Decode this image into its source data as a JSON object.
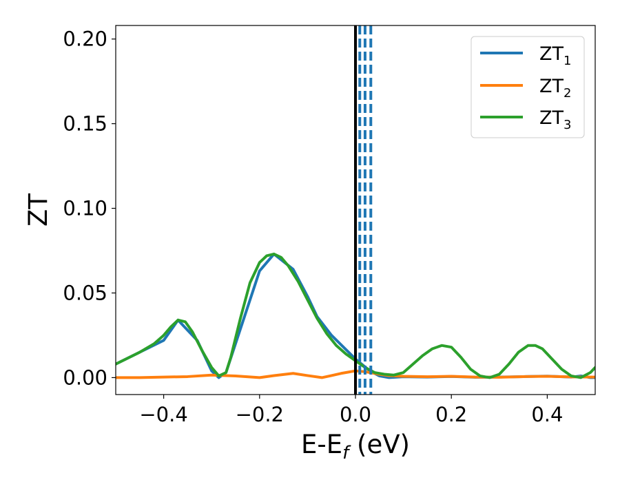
{
  "chart_data": {
    "type": "line",
    "xlabel": {
      "main": "E-E",
      "sub": "f",
      "suffix": " (eV)"
    },
    "ylabel": "ZT",
    "xlim": [
      -0.5,
      0.5
    ],
    "ylim": [
      -0.01,
      0.208
    ],
    "xticks": [
      -0.4,
      -0.2,
      0.0,
      0.2,
      0.4
    ],
    "xtick_labels": [
      "−0.4",
      "−0.2",
      "0.0",
      "0.2",
      "0.4"
    ],
    "yticks": [
      0.0,
      0.05,
      0.1,
      0.15,
      0.2
    ],
    "ytick_labels": [
      "0.00",
      "0.05",
      "0.10",
      "0.15",
      "0.20"
    ],
    "grid": false,
    "legend_position": "top-right",
    "series": [
      {
        "name": "ZT",
        "sub": "1",
        "color": "#1f77b4",
        "x": [
          -0.5,
          -0.4,
          -0.37,
          -0.33,
          -0.3,
          -0.285,
          -0.27,
          -0.2,
          -0.17,
          -0.13,
          -0.1,
          -0.08,
          -0.05,
          0.0,
          0.03,
          0.05,
          0.07,
          0.1,
          0.15,
          0.2,
          0.25,
          0.3,
          0.35,
          0.4,
          0.45,
          0.47,
          0.49,
          0.5
        ],
        "y": [
          0.008,
          0.022,
          0.034,
          0.022,
          0.004,
          0.0,
          0.003,
          0.063,
          0.073,
          0.064,
          0.048,
          0.036,
          0.025,
          0.011,
          0.004,
          0.001,
          0.0,
          0.0005,
          0.0003,
          0.0007,
          0.0002,
          0.0003,
          0.0006,
          0.0009,
          0.0003,
          0.001,
          0.0,
          0.0
        ]
      },
      {
        "name": "ZT",
        "sub": "2",
        "color": "#ff7f0e",
        "x": [
          -0.5,
          -0.45,
          -0.4,
          -0.35,
          -0.3,
          -0.25,
          -0.2,
          -0.17,
          -0.13,
          -0.1,
          -0.07,
          -0.05,
          -0.03,
          0.0,
          0.02,
          0.05,
          0.07,
          0.1,
          0.15,
          0.2,
          0.25,
          0.3,
          0.35,
          0.4,
          0.45,
          0.5
        ],
        "y": [
          0.0,
          0.0,
          0.0003,
          0.0006,
          0.0015,
          0.001,
          0.0,
          0.0012,
          0.0025,
          0.0012,
          0.0,
          0.0012,
          0.0025,
          0.004,
          0.0035,
          0.002,
          0.0012,
          0.0008,
          0.0005,
          0.0008,
          0.0003,
          0.0002,
          0.0006,
          0.0008,
          0.0004,
          0.0003
        ]
      },
      {
        "name": "ZT",
        "sub": "3",
        "color": "#2ca02c",
        "x": [
          -0.5,
          -0.45,
          -0.42,
          -0.4,
          -0.385,
          -0.37,
          -0.355,
          -0.34,
          -0.32,
          -0.3,
          -0.285,
          -0.27,
          -0.26,
          -0.24,
          -0.22,
          -0.2,
          -0.185,
          -0.17,
          -0.155,
          -0.14,
          -0.12,
          -0.1,
          -0.08,
          -0.06,
          -0.04,
          -0.02,
          0.0,
          0.02,
          0.04,
          0.06,
          0.08,
          0.1,
          0.12,
          0.14,
          0.16,
          0.18,
          0.2,
          0.22,
          0.24,
          0.26,
          0.28,
          0.3,
          0.32,
          0.34,
          0.36,
          0.375,
          0.39,
          0.41,
          0.43,
          0.45,
          0.47,
          0.49,
          0.5
        ],
        "y": [
          0.008,
          0.015,
          0.02,
          0.025,
          0.03,
          0.034,
          0.033,
          0.027,
          0.016,
          0.006,
          0.001,
          0.003,
          0.012,
          0.035,
          0.056,
          0.068,
          0.072,
          0.073,
          0.071,
          0.066,
          0.057,
          0.046,
          0.035,
          0.026,
          0.019,
          0.014,
          0.01,
          0.006,
          0.003,
          0.002,
          0.0015,
          0.003,
          0.008,
          0.013,
          0.017,
          0.019,
          0.018,
          0.012,
          0.005,
          0.001,
          0.0,
          0.002,
          0.008,
          0.015,
          0.019,
          0.019,
          0.017,
          0.011,
          0.005,
          0.001,
          0.0,
          0.003,
          0.006
        ]
      }
    ],
    "vlines": [
      {
        "x": 0.0,
        "style": "solid",
        "color": "#000000"
      },
      {
        "x": 0.009,
        "style": "dashed",
        "color": "#1f77b4"
      },
      {
        "x": 0.02,
        "style": "dashed",
        "color": "#1f77b4"
      },
      {
        "x": 0.032,
        "style": "dashed",
        "color": "#1f77b4"
      }
    ]
  }
}
